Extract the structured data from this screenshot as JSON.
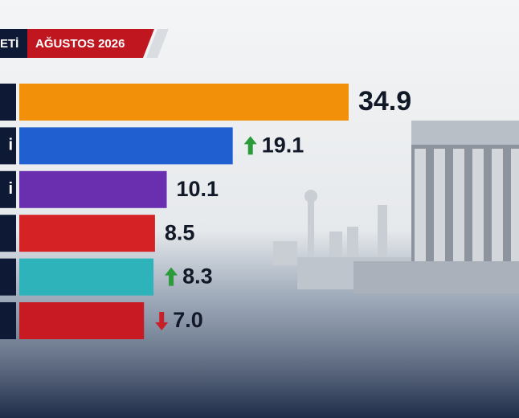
{
  "chart_data": {
    "type": "hbar",
    "header": {
      "left": "ETİ",
      "right": "AĞUSTOS 2026"
    },
    "categories": [
      null,
      "i",
      "i",
      null,
      null,
      null
    ],
    "values": [
      34.9,
      19.1,
      10.1,
      8.5,
      8.3,
      7.0
    ],
    "value_labels": [
      "34.9",
      "19.1",
      "10.1",
      "8.5",
      "8.3",
      "7.0"
    ],
    "colors": [
      "#f39009",
      "#1f5fcf",
      "#6a2fae",
      "#d52224",
      "#2fb3ba",
      "#c81a22"
    ],
    "trend": [
      null,
      "up",
      null,
      null,
      "up",
      "down"
    ],
    "xlim": [
      -10,
      36
    ]
  }
}
